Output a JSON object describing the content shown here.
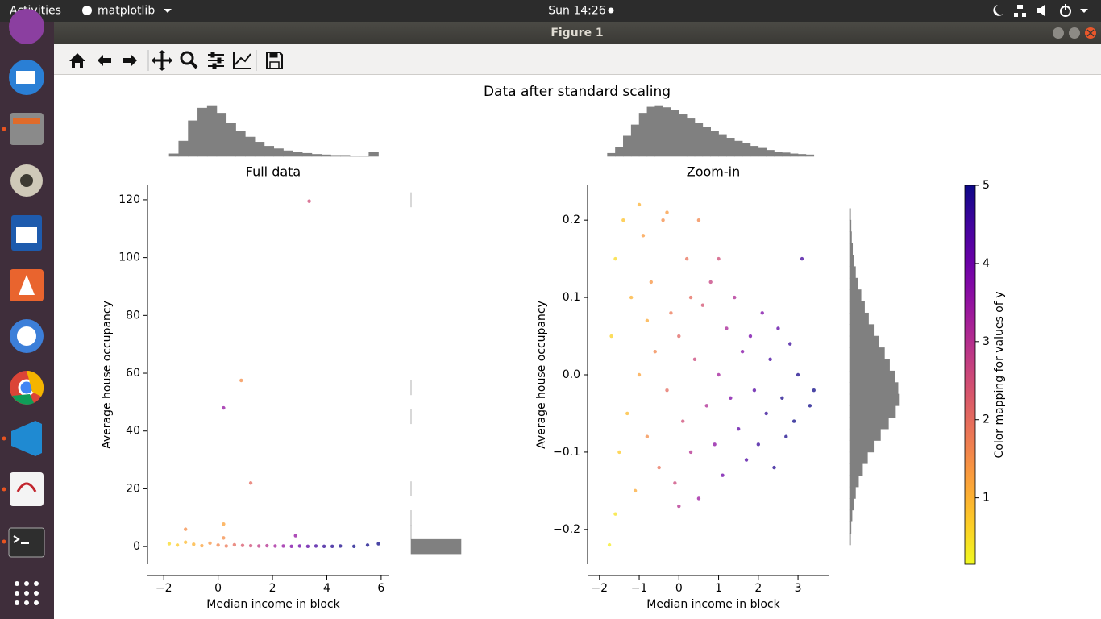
{
  "topbar": {
    "activities": "Activities",
    "app": "matplotlib",
    "clock": "Sun 14:26"
  },
  "window": {
    "title": "Figure 1"
  },
  "figure": {
    "suptitle": "Data after standard scaling"
  },
  "chart_data": [
    {
      "type": "scatter",
      "title": "Full data",
      "xlabel": "Median income in block",
      "ylabel": "Average house occupancy",
      "colormap": "plasma_r",
      "x": [
        -1.8,
        -1.5,
        -1.2,
        -0.9,
        -0.6,
        -0.3,
        0,
        0.3,
        0.6,
        0.9,
        1.2,
        1.5,
        1.8,
        2.1,
        2.4,
        2.7,
        3.0,
        3.3,
        3.6,
        3.9,
        4.2,
        4.5,
        5.0,
        5.5,
        5.9,
        3.35,
        0.85,
        0.2,
        1.2,
        -1.2,
        0.2,
        2.85,
        0.2
      ],
      "values": [
        1,
        0.5,
        1.5,
        0.8,
        0.3,
        1.2,
        0.5,
        0.2,
        0.6,
        0.4,
        0.3,
        0.2,
        0.3,
        0.2,
        0.2,
        0.1,
        0.2,
        0.1,
        0.2,
        0.1,
        0.1,
        0.2,
        0.1,
        0.5,
        1,
        119.5,
        57.5,
        48,
        22,
        6,
        7.8,
        3.8,
        3
      ],
      "c": [
        0.5,
        0.7,
        0.9,
        1.0,
        1.2,
        1.4,
        1.6,
        1.8,
        2.0,
        2.3,
        2.5,
        2.8,
        3.0,
        3.3,
        3.5,
        3.8,
        4.0,
        4.2,
        4.5,
        4.7,
        4.8,
        4.9,
        5.0,
        5.0,
        5.0,
        2.5,
        1.5,
        3.5,
        2,
        1.5,
        1.2,
        3.5,
        1.5
      ],
      "xlim": [
        -2.6,
        6.3
      ],
      "xticks": [
        {
          "value": -2,
          "label": "−2"
        },
        0,
        2,
        4,
        6
      ],
      "ylim": [
        -6.1,
        125
      ],
      "yticks": [
        0,
        20,
        40,
        60,
        80,
        100,
        120
      ]
    },
    {
      "type": "scatter",
      "title": "Zoom-in",
      "xlabel": "Median income in block",
      "ylabel": "Average house occupancy",
      "colormap": "plasma_r",
      "x": [
        -1.7,
        -1.5,
        -1.6,
        -1.4,
        -1.3,
        -1.2,
        -1.1,
        -1.0,
        -0.9,
        -0.8,
        -0.7,
        -0.6,
        -0.5,
        -0.4,
        -0.3,
        -0.2,
        -0.1,
        0.0,
        0.1,
        0.2,
        0.3,
        0.4,
        0.5,
        0.6,
        0.7,
        0.8,
        0.9,
        1.0,
        1.1,
        1.2,
        1.3,
        1.4,
        1.5,
        1.6,
        1.7,
        1.8,
        1.9,
        2.0,
        2.1,
        2.2,
        2.3,
        2.4,
        2.5,
        2.6,
        2.7,
        2.8,
        2.9,
        3.0,
        3.1,
        3.3,
        3.4,
        -1.75,
        -1.0,
        -0.3,
        0.5,
        -1.6,
        0.0,
        1.0,
        -0.8,
        0.3
      ],
      "values": [
        0.05,
        -0.1,
        0.15,
        0.2,
        -0.05,
        0.1,
        -0.15,
        0.0,
        0.18,
        -0.08,
        0.12,
        0.03,
        -0.12,
        0.2,
        -0.02,
        0.08,
        -0.14,
        0.05,
        -0.06,
        0.15,
        -0.1,
        0.02,
        -0.16,
        0.09,
        -0.04,
        0.12,
        -0.09,
        0.0,
        -0.13,
        0.06,
        -0.03,
        0.1,
        -0.07,
        0.03,
        -0.11,
        0.05,
        -0.02,
        -0.09,
        0.08,
        -0.05,
        0.02,
        -0.12,
        0.06,
        -0.03,
        -0.08,
        0.04,
        -0.06,
        0.0,
        0.15,
        -0.04,
        -0.02,
        -0.22,
        0.22,
        0.21,
        0.2,
        -0.18,
        -0.17,
        0.15,
        0.07,
        0.1
      ],
      "c": [
        0.6,
        0.7,
        0.5,
        0.8,
        0.9,
        1.0,
        1.1,
        1.2,
        1.3,
        1.5,
        1.4,
        1.6,
        1.9,
        1.5,
        2.0,
        1.8,
        2.6,
        2.1,
        2.5,
        1.9,
        3.0,
        2.6,
        3.4,
        2.4,
        3.1,
        2.7,
        3.6,
        3.3,
        4.0,
        3.2,
        3.8,
        3.1,
        4.2,
        3.7,
        4.4,
        3.9,
        4.3,
        4.6,
        3.8,
        4.7,
        4.5,
        4.8,
        4.2,
        4.9,
        4.9,
        4.6,
        5.0,
        4.9,
        4.5,
        5.0,
        5.0,
        0.3,
        1.0,
        1.3,
        1.6,
        0.4,
        3.0,
        2.5,
        1.1,
        2.0
      ],
      "xlim": [
        -2.3,
        3.77
      ],
      "xticks": [
        {
          "value": -2,
          "label": "−2"
        },
        {
          "value": -1,
          "label": "−1"
        },
        0,
        1,
        2,
        3
      ],
      "ylim": [
        -0.245,
        0.245
      ],
      "yticks": [
        {
          "value": -0.2,
          "label": "−0.2"
        },
        {
          "value": -0.1,
          "label": "−0.1"
        },
        {
          "value": 0,
          "label": "0.0"
        },
        0.1,
        0.2
      ]
    },
    {
      "type": "histogram",
      "orientation": "vertical",
      "color": "#808080",
      "bins": [
        -1.8,
        -1.45,
        -1.1,
        -0.75,
        -0.4,
        -0.05,
        0.3,
        0.65,
        1.0,
        1.35,
        1.7,
        2.05,
        2.4,
        2.75,
        3.1,
        3.45,
        3.8,
        4.15,
        4.5,
        4.85,
        5.2,
        5.55,
        5.9
      ],
      "counts": [
        5,
        30,
        70,
        95,
        100,
        85,
        66,
        50,
        38,
        28,
        20,
        15,
        11,
        8,
        6,
        4,
        3,
        2,
        2,
        1,
        1,
        9
      ]
    },
    {
      "type": "histogram",
      "orientation": "horizontal",
      "color": "#808080",
      "bins": [
        -2.5,
        2.5,
        7.5,
        12.5,
        17.5,
        22.5,
        27.5,
        32.5,
        37.5,
        42.5,
        47.5,
        52.5,
        57.5,
        62.5,
        67.5,
        72.5,
        77.5,
        82.5,
        87.5,
        92.5,
        97.5,
        102.5,
        107.5,
        112.5,
        117.5,
        122.5
      ],
      "counts": [
        20600,
        6,
        1,
        0,
        1,
        0,
        0,
        0,
        0,
        1,
        0,
        1,
        0,
        0,
        0,
        0,
        0,
        0,
        0,
        0,
        0,
        0,
        0,
        0,
        1
      ]
    },
    {
      "type": "histogram",
      "orientation": "vertical",
      "color": "#808080",
      "bins": [
        -1.8,
        -1.6,
        -1.4,
        -1.2,
        -1.0,
        -0.8,
        -0.6,
        -0.4,
        -0.2,
        0.0,
        0.2,
        0.4,
        0.6,
        0.8,
        1.0,
        1.2,
        1.4,
        1.6,
        1.8,
        2.0,
        2.2,
        2.4,
        2.6,
        2.8,
        3.0,
        3.2,
        3.4
      ],
      "counts": [
        6,
        18,
        40,
        62,
        85,
        97,
        100,
        96,
        90,
        82,
        74,
        66,
        58,
        50,
        43,
        36,
        30,
        25,
        20,
        16,
        12,
        9,
        7,
        5,
        4,
        3
      ]
    },
    {
      "type": "histogram",
      "orientation": "horizontal",
      "color": "#808080",
      "bins": [
        -0.22,
        -0.205,
        -0.19,
        -0.175,
        -0.16,
        -0.145,
        -0.13,
        -0.115,
        -0.1,
        -0.085,
        -0.07,
        -0.055,
        -0.04,
        -0.025,
        -0.01,
        0.005,
        0.02,
        0.035,
        0.05,
        0.065,
        0.08,
        0.095,
        0.11,
        0.125,
        0.14,
        0.155,
        0.17,
        0.185,
        0.2,
        0.215
      ],
      "counts": [
        2,
        3,
        5,
        8,
        12,
        18,
        26,
        36,
        48,
        62,
        78,
        92,
        100,
        97,
        90,
        80,
        70,
        58,
        48,
        38,
        30,
        23,
        17,
        12,
        8,
        6,
        4,
        3,
        2
      ]
    },
    {
      "type": "colorbar",
      "colormap": "plasma_r",
      "ylabel": "Color mapping for values of y",
      "ylim": [
        0.15,
        5
      ],
      "yticks": [
        1,
        2,
        3,
        4,
        5
      ]
    }
  ]
}
